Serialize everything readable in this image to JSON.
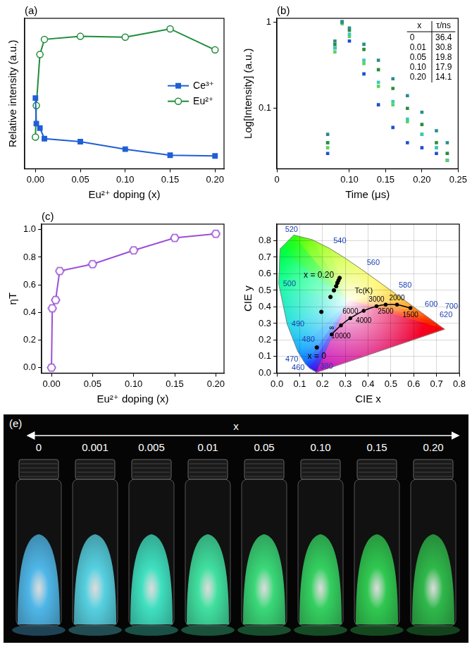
{
  "chart_data": [
    {
      "label": "(a)",
      "type": "line",
      "x_label": "Eu²⁺ doping (x)",
      "y_label": "Relative intensity (a.u.)",
      "x": [
        0,
        0.001,
        0.005,
        0.01,
        0.05,
        0.1,
        0.15,
        0.2
      ],
      "series": [
        {
          "name": "Ce³⁺",
          "color": "#1f5fd6",
          "marker": "square",
          "values": [
            0.47,
            0.3,
            0.27,
            0.2,
            0.18,
            0.13,
            0.09,
            0.085
          ]
        },
        {
          "name": "Eu²⁺",
          "color": "#1e8c3a",
          "marker": "circle",
          "values": [
            0.21,
            0.42,
            0.76,
            0.86,
            0.88,
            0.875,
            0.93,
            0.79
          ]
        }
      ],
      "xlim": [
        -0.012,
        0.21
      ],
      "xticks": [
        {
          "value": 0,
          "label": "0.00"
        },
        0.05,
        {
          "value": 0.1,
          "label": "0.10"
        },
        0.15,
        {
          "value": 0.2,
          "label": "0.20"
        }
      ],
      "ylim": [
        0,
        1
      ],
      "tick_labels": "x",
      "grid": false,
      "legend": "right"
    },
    {
      "label": "(b)",
      "type": "scatter",
      "log": "y",
      "marker": "square",
      "x_label": "Time (μs)",
      "y_label": "Log[Intensity] (a.u.)",
      "xlim": [
        0,
        0.25
      ],
      "xticks": [
        0,
        {
          "value": 0.1,
          "label": "0.10"
        },
        0.15,
        {
          "value": 0.2,
          "label": "0.20"
        },
        0.25
      ],
      "ylim": [
        0.02,
        1.1
      ],
      "yticks": [
        0.1,
        1
      ],
      "grid": false,
      "series": [
        {
          "color": "#2b8c8c",
          "x": [
            0.07,
            0.08,
            0.09,
            0.1,
            0.12,
            0.14,
            0.16,
            0.18,
            0.2,
            0.22,
            0.235
          ],
          "values": [
            0.05,
            0.6,
            1.0,
            0.85,
            0.55,
            0.36,
            0.22,
            0.14,
            0.09,
            0.055,
            0.04
          ]
        },
        {
          "color": "#2e8b3a",
          "x": [
            0.07,
            0.08,
            0.09,
            0.1,
            0.12,
            0.14,
            0.16,
            0.18,
            0.2,
            0.22,
            0.235
          ],
          "values": [
            0.04,
            0.55,
            1.0,
            0.8,
            0.48,
            0.28,
            0.17,
            0.1,
            0.065,
            0.04,
            0.03
          ]
        },
        {
          "color": "#3cc9b8",
          "x": [
            0.07,
            0.08,
            0.09,
            0.1,
            0.12,
            0.14,
            0.16,
            0.18,
            0.2,
            0.22,
            0.235
          ],
          "values": [
            0.04,
            0.5,
            1.0,
            0.72,
            0.36,
            0.2,
            0.12,
            0.075,
            0.05,
            0.035,
            0.03
          ]
        },
        {
          "color": "#5fd35f",
          "x": [
            0.07,
            0.08,
            0.09,
            0.1,
            0.12,
            0.14,
            0.16,
            0.18,
            0.2,
            0.22,
            0.235
          ],
          "values": [
            0.035,
            0.45,
            0.95,
            0.68,
            0.33,
            0.18,
            0.11,
            0.07,
            0.05,
            0.035,
            0.025
          ]
        },
        {
          "color": "#1f4fd0",
          "x": [
            0.07,
            0.08,
            0.09,
            0.1,
            0.12,
            0.14,
            0.16,
            0.18,
            0.2,
            0.22,
            0.235
          ],
          "values": [
            0.03,
            0.5,
            1.0,
            0.6,
            0.25,
            0.11,
            0.06,
            0.04,
            0.035,
            0.03,
            0.025
          ]
        }
      ],
      "inset_table": {
        "columns": [
          "x",
          "τ/ns"
        ],
        "rows": [
          [
            "0",
            "36.4"
          ],
          [
            "0.01",
            "30.8"
          ],
          [
            "0.05",
            "19.8"
          ],
          [
            "0.10",
            "17.9"
          ],
          [
            "0.20",
            "14.1"
          ]
        ]
      }
    },
    {
      "label": "(c)",
      "type": "line",
      "x_label": "Eu²⁺ doping (x)",
      "y_label": "ηT",
      "x": [
        0,
        0.001,
        0.005,
        0.01,
        0.05,
        0.1,
        0.15,
        0.2
      ],
      "series": [
        {
          "color": "#9b4fd6",
          "marker": "hexagon",
          "values": [
            0.0,
            0.43,
            0.49,
            0.7,
            0.75,
            0.85,
            0.94,
            0.97
          ]
        }
      ],
      "xlim": [
        -0.012,
        0.21
      ],
      "xticks": [
        {
          "value": 0,
          "label": "0.00"
        },
        0.05,
        {
          "value": 0.1,
          "label": "0.10"
        },
        0.15,
        {
          "value": 0.2,
          "label": "0.20"
        }
      ],
      "ylim": [
        -0.04,
        1.04
      ],
      "yticks": [
        {
          "value": 0,
          "label": "0.0"
        },
        0.2,
        0.4,
        0.6,
        0.8,
        {
          "value": 1,
          "label": "1.0"
        }
      ],
      "grid": false
    },
    {
      "type": "scatter",
      "x_label": "CIE x",
      "y_label": "CIE y",
      "xlim": [
        0,
        0.8
      ],
      "xticks": [
        {
          "value": 0,
          "label": "0.0"
        },
        0.1,
        0.2,
        0.3,
        0.4,
        0.5,
        0.6,
        0.7,
        0.8
      ],
      "ylim": [
        0,
        0.9
      ],
      "yticks": [
        {
          "value": 0,
          "label": "0.0"
        },
        0.1,
        0.2,
        0.3,
        0.4,
        0.5,
        0.6,
        0.7,
        0.8
      ],
      "grid": true,
      "spectral_locus": {
        "x": [
          0.1741,
          0.144,
          0.1241,
          0.0913,
          0.0454,
          0.0082,
          0.0139,
          0.0743,
          0.1547,
          0.2296,
          0.3016,
          0.3731,
          0.4441,
          0.5125,
          0.5752,
          0.627,
          0.6658,
          0.6915,
          0.7347
        ],
        "y": [
          0.005,
          0.0297,
          0.0578,
          0.1327,
          0.295,
          0.5384,
          0.7502,
          0.8338,
          0.8059,
          0.7543,
          0.6923,
          0.6245,
          0.5547,
          0.4866,
          0.4242,
          0.3725,
          0.334,
          0.3083,
          0.2653
        ],
        "labels": [
          "380",
          "460",
          "470",
          "480",
          "490",
          "500",
          null,
          "520",
          null,
          "540",
          null,
          "560",
          null,
          "580",
          null,
          "600",
          null,
          "620",
          "700"
        ],
        "colors": [
          "#3a10c8",
          "#2020ff",
          "#0060ff",
          "#00a0ff",
          "#00d8e0",
          "#00ff90",
          "#00ff40",
          "#30ff10",
          "#70ff00",
          "#a0ff00",
          "#c8ff00",
          "#e8f800",
          "#fff000",
          "#ffc800",
          "#ff9800",
          "#ff6800",
          "#ff4000",
          "#ff2800",
          "#ff0000"
        ]
      },
      "planckian_locus": {
        "label": "Tc(K)",
        "x": [
          0.2399,
          0.2807,
          0.3221,
          0.3805,
          0.4369,
          0.477,
          0.5267,
          0.5857
        ],
        "y": [
          0.2342,
          0.2884,
          0.3318,
          0.3768,
          0.4041,
          0.4137,
          0.4133,
          0.3931
        ],
        "labels": [
          "∞",
          "10000",
          "6000",
          "4000",
          "3000",
          "2500",
          "2000",
          "1500"
        ]
      },
      "samples": {
        "x": [
          0.175,
          0.195,
          0.235,
          0.25,
          0.26,
          0.265,
          0.27,
          0.275
        ],
        "y": [
          0.155,
          0.37,
          0.46,
          0.5,
          0.525,
          0.545,
          0.56,
          0.575
        ],
        "labels": [
          "x = 0",
          null,
          null,
          null,
          null,
          null,
          null,
          "x = 0.20"
        ]
      }
    }
  ],
  "photo": {
    "label": "(e)",
    "axis_title": "x",
    "samples": [
      "0",
      "0.001",
      "0.005",
      "0.01",
      "0.05",
      "0.10",
      "0.15",
      "0.20"
    ],
    "colors": [
      "#4fb7e8",
      "#56d0e0",
      "#3fe0c0",
      "#40e0a0",
      "#3ad878",
      "#34d060",
      "#30c850",
      "#2fb84a"
    ]
  }
}
